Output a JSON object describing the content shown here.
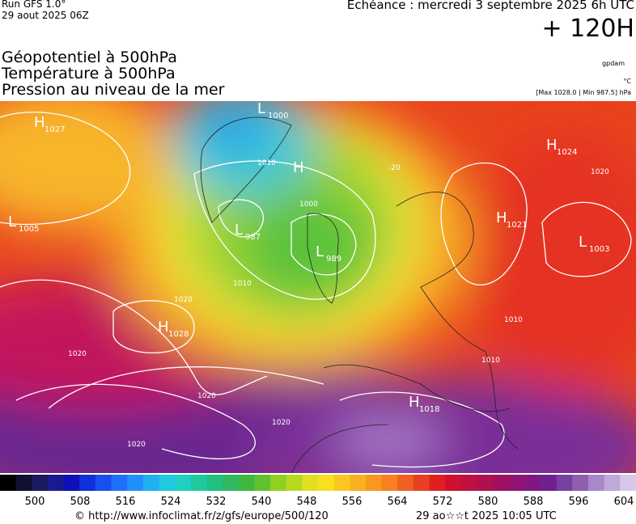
{
  "header": {
    "run": "Run GFS 1.0°",
    "date": "29 aout 2025 06Z",
    "forecast": "Echéance : mercredi 3 septembre 2025 6h UTC",
    "lead": "+ 120H",
    "titles": [
      "Géopotentiel à 500hPa",
      "Température à 500hPa",
      "Pression au niveau de la mer"
    ],
    "units": [
      "gpdam",
      "°C"
    ],
    "extremes": "[Max 1028.0 | Min 987.5] hPa"
  },
  "map": {
    "centers": [
      {
        "letter": "H",
        "value": 1027
      },
      {
        "letter": "L",
        "value": 1000
      },
      {
        "letter": "H",
        "value": null
      },
      {
        "letter": "L",
        "value": 1005
      },
      {
        "letter": "L",
        "value": 987
      },
      {
        "letter": "L",
        "value": 989
      },
      {
        "letter": "H",
        "value": 1024
      },
      {
        "letter": "H",
        "value": 1021
      },
      {
        "letter": "L",
        "value": 1003
      },
      {
        "letter": "H",
        "value": 1028
      },
      {
        "letter": "H",
        "value": 1018
      }
    ],
    "isobar_labels": [
      1020,
      1020,
      1020,
      1020,
      1020,
      1010,
      1010,
      1010,
      1000,
      1020,
      1010,
      -20
    ]
  },
  "colorbar": {
    "labels": [
      500,
      508,
      516,
      524,
      532,
      540,
      548,
      556,
      564,
      572,
      580,
      588,
      596,
      604
    ]
  },
  "footer": {
    "url": "© http://www.infoclimat.fr/z/gfs/europe/500/120",
    "generated": "29 ao☆☆t 2025 10:05 UTC"
  }
}
